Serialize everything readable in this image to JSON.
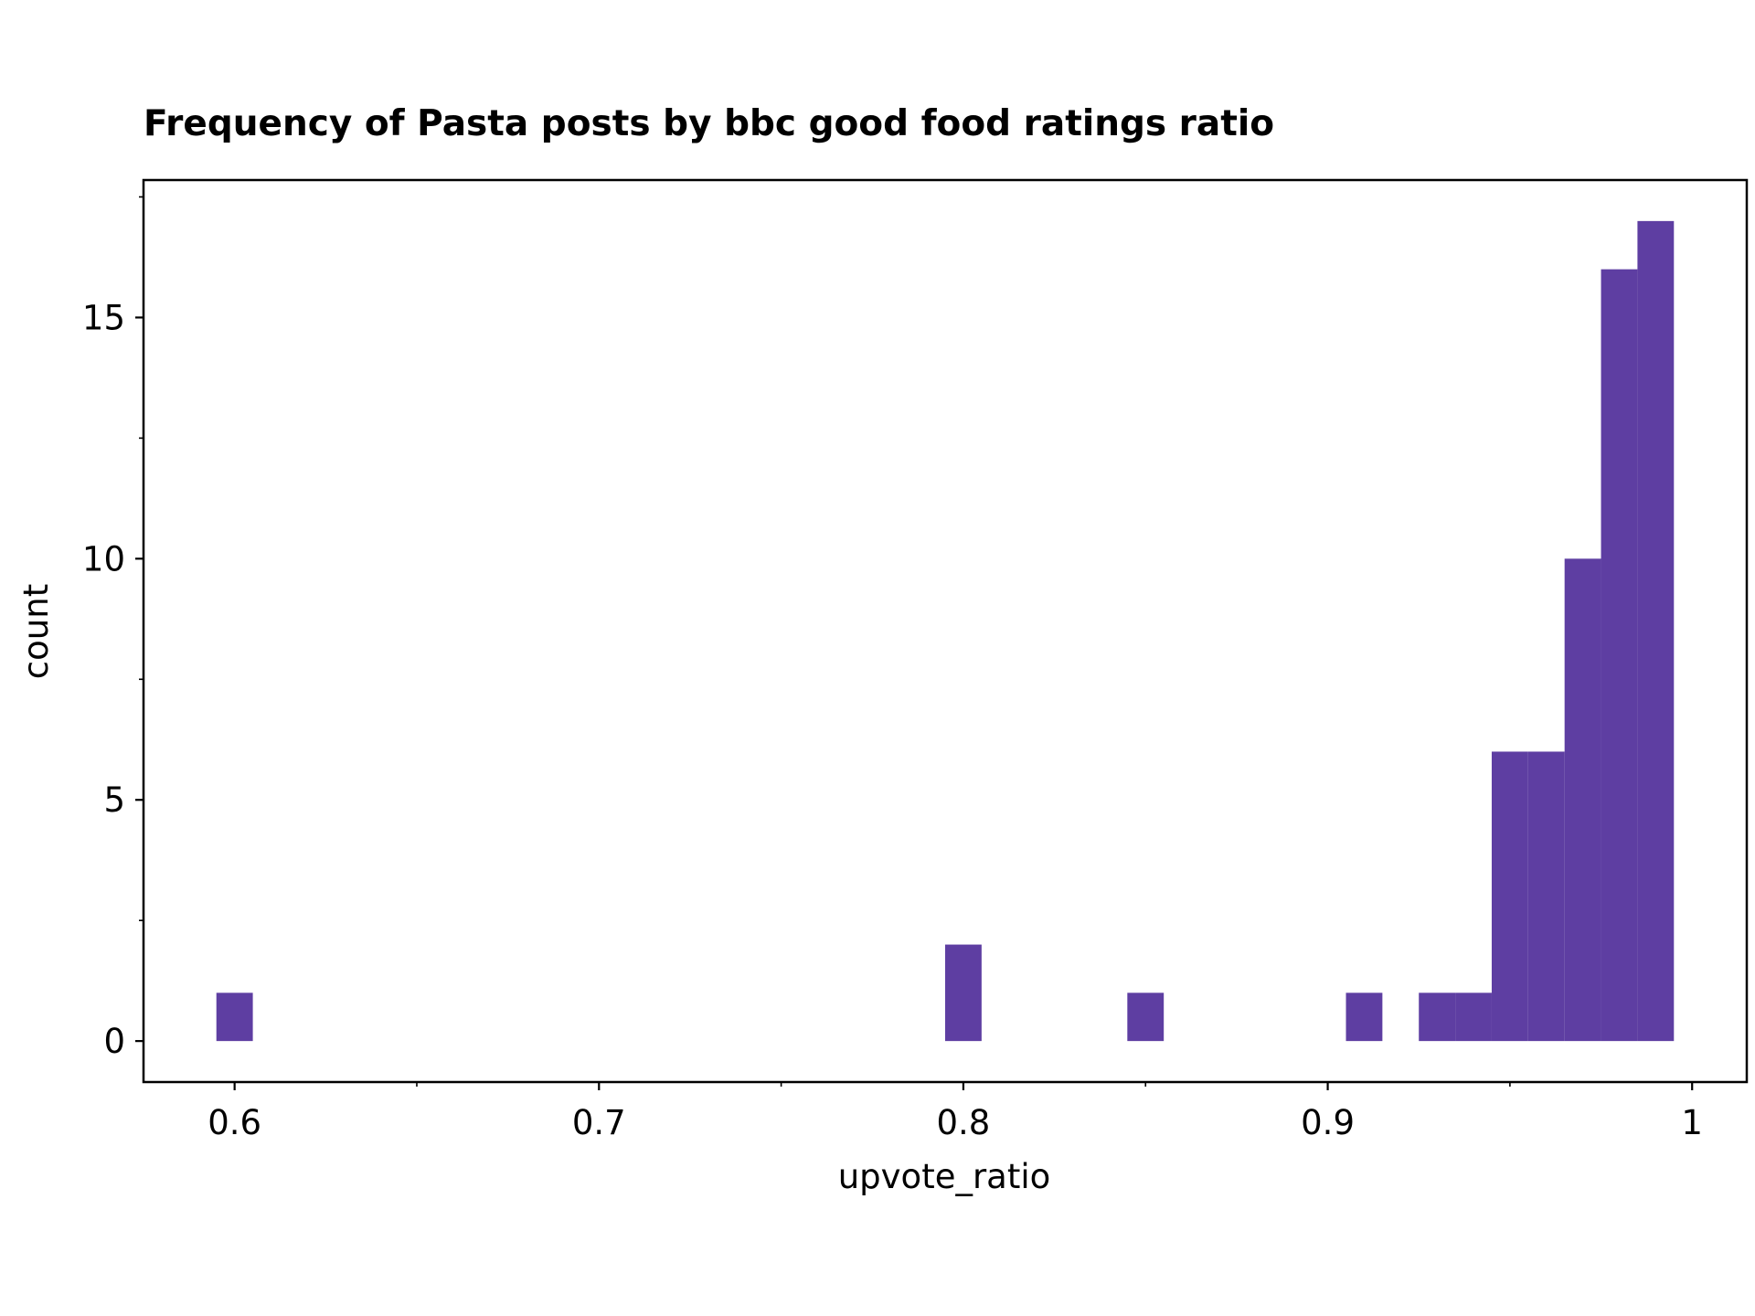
{
  "chart_data": {
    "type": "histogram",
    "title": "Frequency of Pasta posts by bbc good food ratings ratio",
    "xlabel": "upvote_ratio",
    "ylabel": "count",
    "bar_color": "#5e3ea2",
    "xlim": [
      0.575,
      1.015
    ],
    "ylim": [
      -0.85,
      17.85
    ],
    "grid": false,
    "x_ticks": [
      {
        "value": 0.6,
        "label": "0.6"
      },
      {
        "value": 0.7,
        "label": "0.7"
      },
      {
        "value": 0.8,
        "label": "0.8"
      },
      {
        "value": 0.9,
        "label": "0.9"
      },
      {
        "value": 1.0,
        "label": "1"
      }
    ],
    "x_minor_ticks": [
      0.65,
      0.75,
      0.85,
      0.95
    ],
    "y_ticks": [
      {
        "value": 0,
        "label": "0"
      },
      {
        "value": 5,
        "label": "5"
      },
      {
        "value": 10,
        "label": "10"
      },
      {
        "value": 15,
        "label": "15"
      }
    ],
    "y_minor_ticks": [
      2.5,
      7.5,
      12.5,
      17.5
    ],
    "bins": [
      {
        "x0": 0.595,
        "x1": 0.605,
        "count": 1
      },
      {
        "x0": 0.795,
        "x1": 0.805,
        "count": 2
      },
      {
        "x0": 0.845,
        "x1": 0.855,
        "count": 1
      },
      {
        "x0": 0.905,
        "x1": 0.915,
        "count": 1
      },
      {
        "x0": 0.925,
        "x1": 0.935,
        "count": 1
      },
      {
        "x0": 0.935,
        "x1": 0.945,
        "count": 1
      },
      {
        "x0": 0.945,
        "x1": 0.955,
        "count": 6
      },
      {
        "x0": 0.955,
        "x1": 0.965,
        "count": 6
      },
      {
        "x0": 0.965,
        "x1": 0.975,
        "count": 10
      },
      {
        "x0": 0.975,
        "x1": 0.985,
        "count": 16
      },
      {
        "x0": 0.985,
        "x1": 0.995,
        "count": 17
      }
    ]
  }
}
